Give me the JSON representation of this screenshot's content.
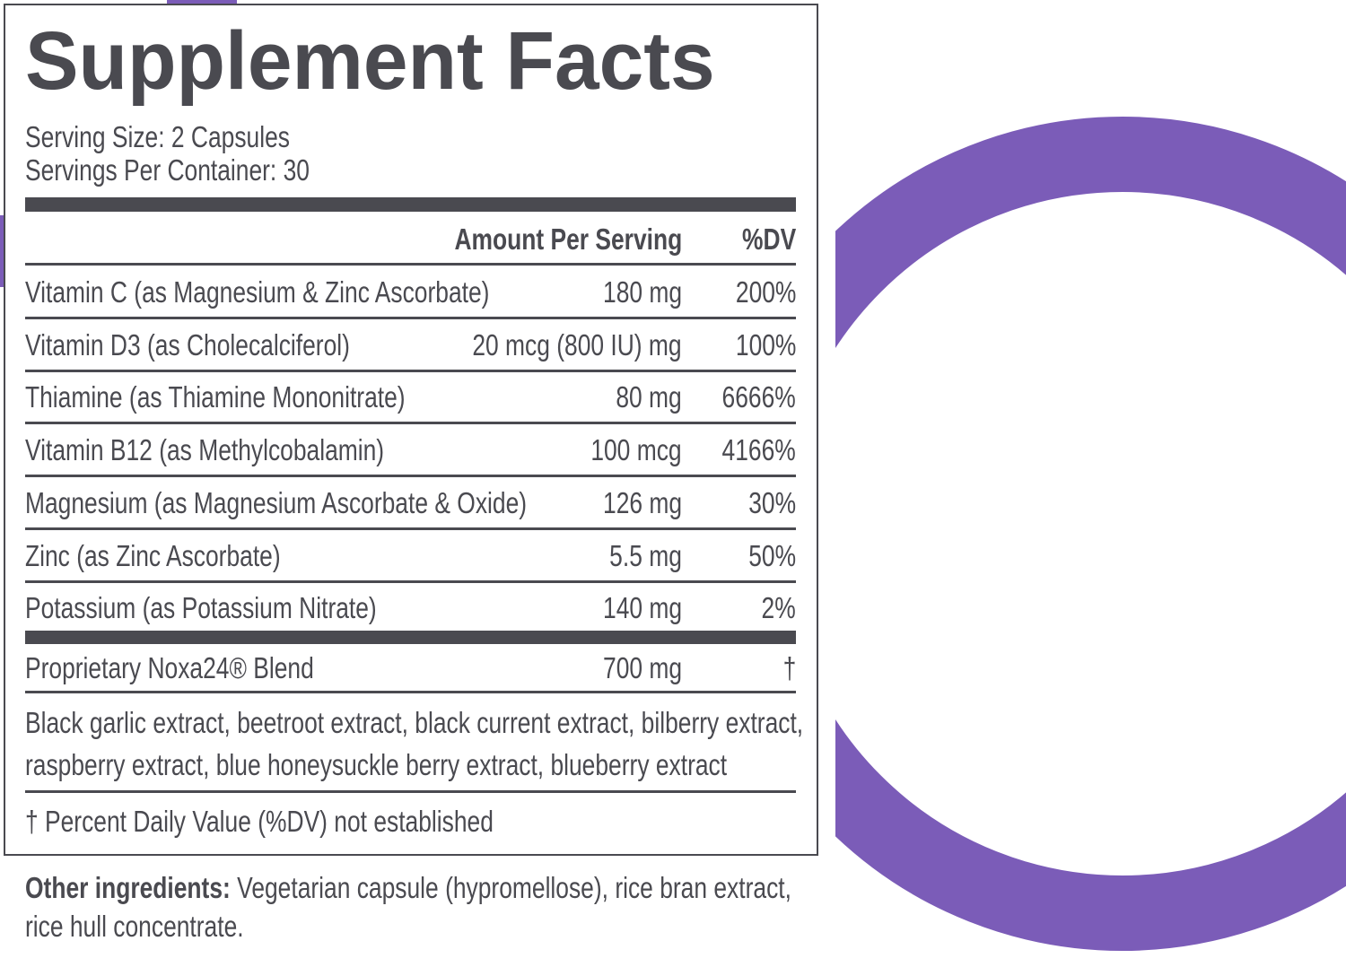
{
  "title": "Supplement Facts",
  "serving_size": "Serving Size: 2 Capsules",
  "servings_per_container": "Servings Per Container: 30",
  "header": {
    "amount": "Amount Per Serving",
    "dv": "%DV"
  },
  "rows": [
    {
      "name": "Vitamin C (as Magnesium & Zinc Ascorbate)",
      "amount": "180 mg",
      "dv": "200%"
    },
    {
      "name": "Vitamin D3 (as Cholecalciferol)",
      "amount": "20 mcg (800 IU) mg",
      "dv": "100%"
    },
    {
      "name": "Thiamine (as Thiamine Mononitrate)",
      "amount": "80 mg",
      "dv": "6666%"
    },
    {
      "name": "Vitamin B12 (as Methylcobalamin)",
      "amount": "100 mcg",
      "dv": "4166%"
    },
    {
      "name": "Magnesium (as Magnesium Ascorbate & Oxide)",
      "amount": "126 mg",
      "dv": "30%"
    },
    {
      "name": "Zinc (as Zinc Ascorbate)",
      "amount": "5.5 mg",
      "dv": "50%"
    },
    {
      "name": "Potassium (as Potassium Nitrate)",
      "amount": "140 mg",
      "dv": "2%"
    }
  ],
  "blend": {
    "name": "Proprietary Noxa24® Blend",
    "amount": "700 mg",
    "dv": "†",
    "ingredients": "Black garlic extract, beetroot extract, black current extract, bilberry extract, raspberry extract, blue honeysuckle berry extract, blueberry extract"
  },
  "footnote": "† Percent Daily Value (%DV) not established",
  "other_ingredients": {
    "label": "Other ingredients:",
    "text": "Vegetarian capsule (hypromellose), rice bran extract, rice hull concentrate."
  }
}
